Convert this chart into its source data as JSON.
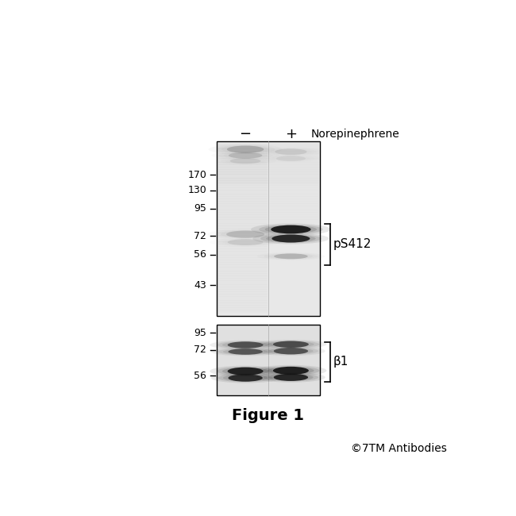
{
  "background_color": "#ffffff",
  "figure_title": "Figure 1",
  "figure_title_fontsize": 14,
  "figure_title_fontweight": "bold",
  "copyright_text": "©7TM Antibodies",
  "copyright_fontsize": 10,
  "norepinephrene_label": "Norepinephrene",
  "minus_label": "−",
  "plus_label": "+",
  "panel1_markers": [
    170,
    130,
    95,
    72,
    56,
    43
  ],
  "panel2_markers": [
    95,
    72,
    56
  ],
  "panel1_label": "pS412",
  "panel2_label": "β1",
  "tick_y_panel1": {
    "170": 185,
    "130": 210,
    "95": 240,
    "72": 285,
    "56": 315,
    "43": 365
  },
  "tick_y_panel2": {
    "95": 443,
    "72": 471,
    "56": 513
  }
}
